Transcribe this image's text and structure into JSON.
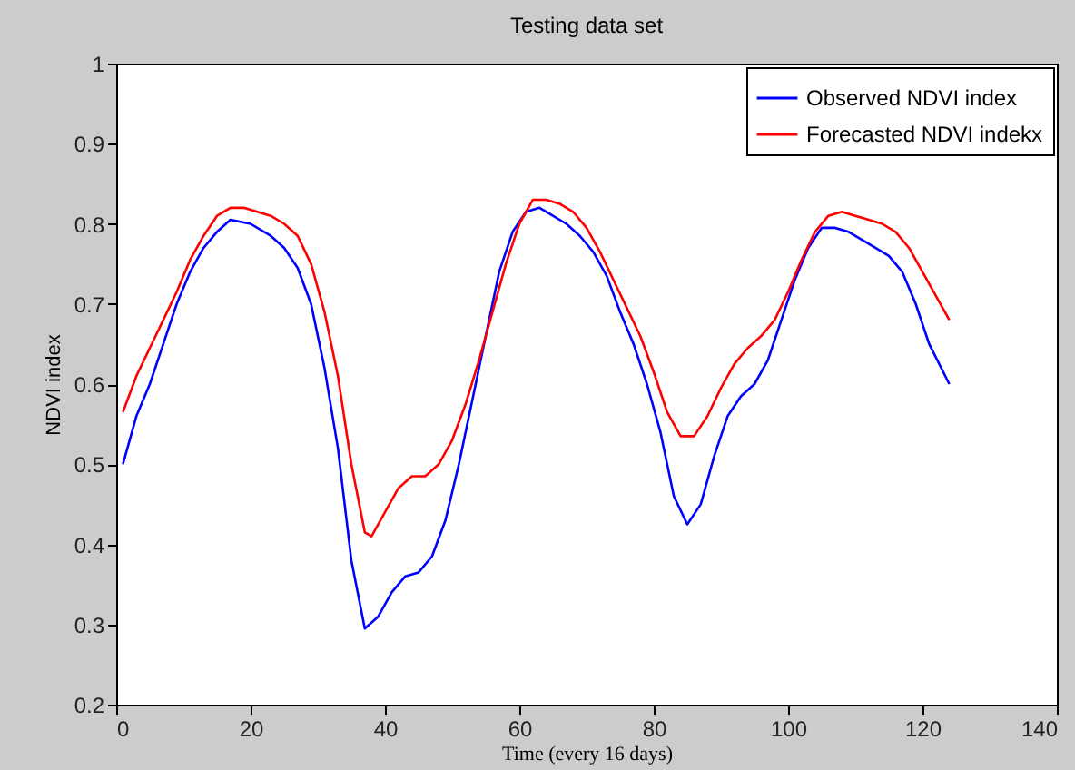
{
  "chart_data": {
    "type": "line",
    "title": "Testing data set",
    "xlabel": "Time  (every 16 days)",
    "ylabel": "NDVI index",
    "xlim": [
      0,
      140
    ],
    "xticks": [
      0,
      20,
      40,
      60,
      80,
      100,
      120,
      140
    ],
    "ylim": [
      0.2,
      1
    ],
    "yticks": [
      0.2,
      0.3,
      0.4,
      0.5,
      0.6,
      0.7,
      0.8,
      0.9,
      1
    ],
    "grid": false,
    "legend": "top right",
    "marker": "none",
    "line_style": "solid",
    "series": [
      {
        "name": "Observed NDVI index",
        "color": "#0000ff",
        "x": [
          1,
          3,
          5,
          7,
          9,
          11,
          13,
          15,
          17,
          20,
          23,
          25,
          27,
          29,
          31,
          33,
          35,
          37,
          39,
          41,
          43,
          45,
          47,
          49,
          51,
          53,
          55,
          57,
          59,
          61,
          63,
          65,
          67,
          69,
          71,
          73,
          75,
          77,
          79,
          81,
          83,
          85,
          87,
          89,
          91,
          93,
          95,
          97,
          99,
          101,
          103,
          105,
          107,
          109,
          111,
          113,
          115,
          117,
          119,
          121,
          124
        ],
        "values": [
          0.5,
          0.56,
          0.6,
          0.65,
          0.7,
          0.74,
          0.77,
          0.79,
          0.805,
          0.8,
          0.785,
          0.77,
          0.745,
          0.7,
          0.62,
          0.52,
          0.38,
          0.295,
          0.31,
          0.34,
          0.36,
          0.365,
          0.385,
          0.43,
          0.5,
          0.58,
          0.66,
          0.74,
          0.79,
          0.815,
          0.82,
          0.81,
          0.8,
          0.785,
          0.765,
          0.735,
          0.69,
          0.65,
          0.6,
          0.54,
          0.46,
          0.425,
          0.45,
          0.51,
          0.56,
          0.585,
          0.6,
          0.63,
          0.68,
          0.73,
          0.77,
          0.795,
          0.795,
          0.79,
          0.78,
          0.77,
          0.76,
          0.74,
          0.7,
          0.65,
          0.6
        ]
      },
      {
        "name": "Forecasted NDVI indekx",
        "color": "#ff0000",
        "x": [
          1,
          3,
          5,
          7,
          9,
          11,
          13,
          15,
          17,
          19,
          21,
          23,
          25,
          27,
          29,
          31,
          33,
          35,
          37,
          38,
          40,
          42,
          44,
          46,
          48,
          50,
          52,
          54,
          56,
          58,
          60,
          62,
          64,
          66,
          68,
          70,
          72,
          74,
          76,
          78,
          80,
          82,
          84,
          86,
          88,
          90,
          92,
          94,
          96,
          98,
          100,
          102,
          104,
          106,
          108,
          110,
          112,
          114,
          116,
          118,
          120,
          122,
          124
        ],
        "values": [
          0.565,
          0.61,
          0.645,
          0.68,
          0.715,
          0.755,
          0.785,
          0.81,
          0.82,
          0.82,
          0.815,
          0.81,
          0.8,
          0.785,
          0.75,
          0.69,
          0.61,
          0.5,
          0.415,
          0.41,
          0.44,
          0.47,
          0.485,
          0.485,
          0.5,
          0.53,
          0.575,
          0.63,
          0.69,
          0.75,
          0.8,
          0.83,
          0.83,
          0.825,
          0.815,
          0.795,
          0.765,
          0.73,
          0.695,
          0.66,
          0.615,
          0.565,
          0.535,
          0.535,
          0.56,
          0.595,
          0.625,
          0.645,
          0.66,
          0.68,
          0.715,
          0.755,
          0.79,
          0.81,
          0.815,
          0.81,
          0.805,
          0.8,
          0.79,
          0.77,
          0.74,
          0.71,
          0.68
        ]
      }
    ]
  }
}
